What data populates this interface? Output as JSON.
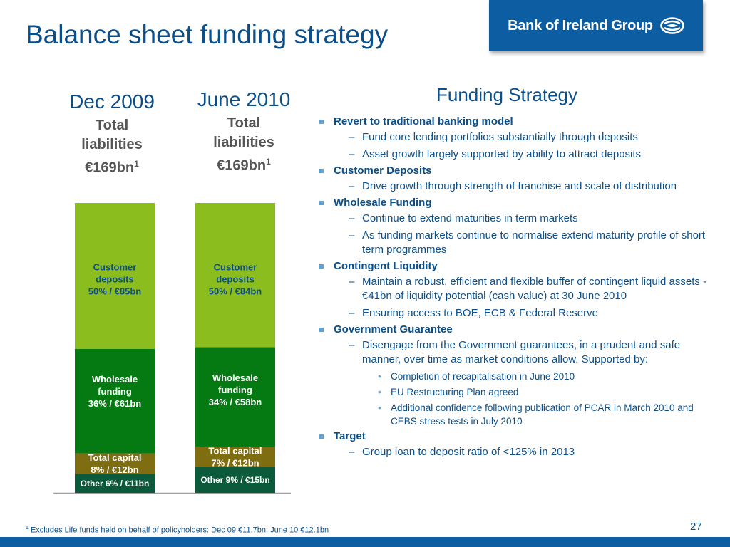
{
  "slide": {
    "title": "Balance sheet funding strategy",
    "logo_text": "Bank of Ireland Group",
    "page_number": "27",
    "footnote_marker": "1",
    "footnote": "Excludes Life funds held on behalf of policyholders: Dec 09 €11.7bn, June 10 €12.1bn"
  },
  "columns": [
    {
      "period": "Dec 2009",
      "sub1": "Total",
      "sub2": "liabilities",
      "total": "€169bn",
      "sup": "1"
    },
    {
      "period": "June 2010",
      "sub1": "Total",
      "sub2": "liabilities",
      "total": "€169bn",
      "sup": "1"
    }
  ],
  "chart_data": {
    "type": "bar",
    "stacked": true,
    "unit": "€bn",
    "categories": [
      "Dec 2009",
      "June 2010"
    ],
    "series": [
      {
        "name": "Other",
        "color": "#0b5a3c",
        "values": [
          11,
          15
        ],
        "percent": [
          6,
          9
        ],
        "labels": [
          [
            "Other 6% / €11bn"
          ],
          [
            "Other 9% / €15bn"
          ]
        ]
      },
      {
        "name": "Total capital",
        "color": "#7f6d12",
        "values": [
          12,
          12
        ],
        "percent": [
          8,
          7
        ],
        "labels": [
          [
            "Total capital",
            "8% / €12bn"
          ],
          [
            "Total capital",
            "7% / €12bn"
          ]
        ]
      },
      {
        "name": "Wholesale funding",
        "color": "#057a12",
        "values": [
          61,
          58
        ],
        "percent": [
          36,
          34
        ],
        "labels": [
          [
            "Wholesale",
            "funding",
            "36% / €61bn"
          ],
          [
            "Wholesale",
            "funding",
            "34% / €58bn"
          ]
        ]
      },
      {
        "name": "Customer deposits",
        "color": "#8cbd1f",
        "values": [
          85,
          84
        ],
        "percent": [
          50,
          50
        ],
        "labels": [
          [
            "Customer",
            "deposits",
            "50% /  €85bn"
          ],
          [
            "Customer",
            "deposits",
            "50% /  €84bn"
          ]
        ]
      }
    ]
  },
  "strategy": {
    "title": "Funding Strategy",
    "items": [
      {
        "text": "Revert to traditional banking model",
        "sub": [
          {
            "text": "Fund core lending portfolios substantially through deposits"
          },
          {
            "text": "Asset growth largely supported by ability to attract deposits"
          }
        ]
      },
      {
        "text": "Customer Deposits",
        "sub": [
          {
            "text": "Drive growth through strength of franchise and scale of distribution"
          }
        ]
      },
      {
        "text": "Wholesale Funding",
        "sub": [
          {
            "text": "Continue to extend maturities in term markets"
          },
          {
            "text": "As funding markets continue to normalise extend maturity profile of short term programmes"
          }
        ]
      },
      {
        "text": "Contingent Liquidity",
        "sub": [
          {
            "text": "Maintain a robust, efficient and flexible buffer of contingent liquid assets - €41bn of liquidity potential (cash value) at 30 June 2010"
          },
          {
            "text": "Ensuring access to BOE, ECB & Federal Reserve"
          }
        ]
      },
      {
        "text": "Government Guarantee",
        "sub": [
          {
            "text": "Disengage from the Government guarantees, in a prudent and safe manner, over time as market conditions allow. Supported by:",
            "sub": [
              {
                "text": "Completion of recapitalisation in June 2010"
              },
              {
                "text": "EU Restructuring Plan agreed"
              },
              {
                "text": "Additional confidence following publication of PCAR in March 2010 and CEBS stress tests in July 2010"
              }
            ]
          }
        ]
      },
      {
        "text": "Target",
        "sub": [
          {
            "text": "Group loan to deposit ratio of <125% in 2013"
          }
        ]
      }
    ]
  }
}
